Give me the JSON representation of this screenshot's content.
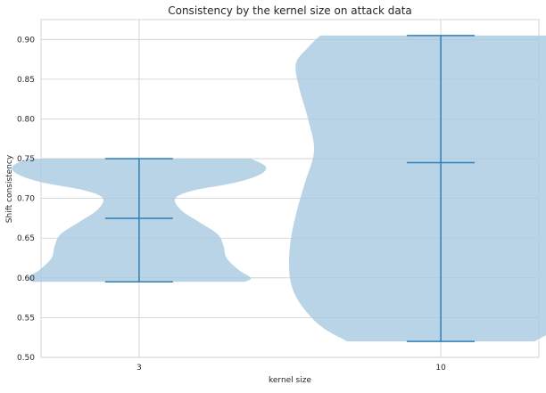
{
  "chart_data": {
    "type": "violin",
    "title": "Consistency by the kernel size on attack data",
    "xlabel": "kernel size",
    "ylabel": "Shift consistency",
    "categories": [
      "3",
      "10"
    ],
    "ylim": [
      0.5,
      0.925
    ],
    "yticks": [
      0.5,
      0.55,
      0.6,
      0.65,
      0.7,
      0.75,
      0.8,
      0.85,
      0.9
    ],
    "ytick_labels": [
      "0.50",
      "0.55",
      "0.60",
      "0.65",
      "0.70",
      "0.75",
      "0.80",
      "0.85",
      "0.90"
    ],
    "grid": true,
    "violins": [
      {
        "category": "3",
        "min": 0.595,
        "max": 0.75,
        "median": 0.675,
        "half_width_max": 0.45,
        "profile": [
          [
            0.595,
            0.35
          ],
          [
            0.6,
            0.37
          ],
          [
            0.61,
            0.33
          ],
          [
            0.625,
            0.29
          ],
          [
            0.64,
            0.28
          ],
          [
            0.655,
            0.26
          ],
          [
            0.67,
            0.2
          ],
          [
            0.685,
            0.14
          ],
          [
            0.7,
            0.12
          ],
          [
            0.71,
            0.18
          ],
          [
            0.72,
            0.32
          ],
          [
            0.73,
            0.4
          ],
          [
            0.74,
            0.42
          ],
          [
            0.75,
            0.37
          ]
        ]
      },
      {
        "category": "10",
        "min": 0.52,
        "max": 0.905,
        "median": 0.745,
        "half_width_max": 0.45,
        "profile": [
          [
            0.52,
            0.31
          ],
          [
            0.54,
            0.4
          ],
          [
            0.57,
            0.47
          ],
          [
            0.6,
            0.5
          ],
          [
            0.64,
            0.5
          ],
          [
            0.68,
            0.48
          ],
          [
            0.72,
            0.45
          ],
          [
            0.76,
            0.42
          ],
          [
            0.8,
            0.44
          ],
          [
            0.84,
            0.47
          ],
          [
            0.87,
            0.48
          ],
          [
            0.89,
            0.44
          ],
          [
            0.905,
            0.4
          ]
        ]
      }
    ],
    "colors": {
      "violin_fill": "#a6c9e0",
      "line": "#2f7fb6",
      "grid": "#cccccc",
      "axis": "#cccccc",
      "text": "#262626"
    }
  }
}
